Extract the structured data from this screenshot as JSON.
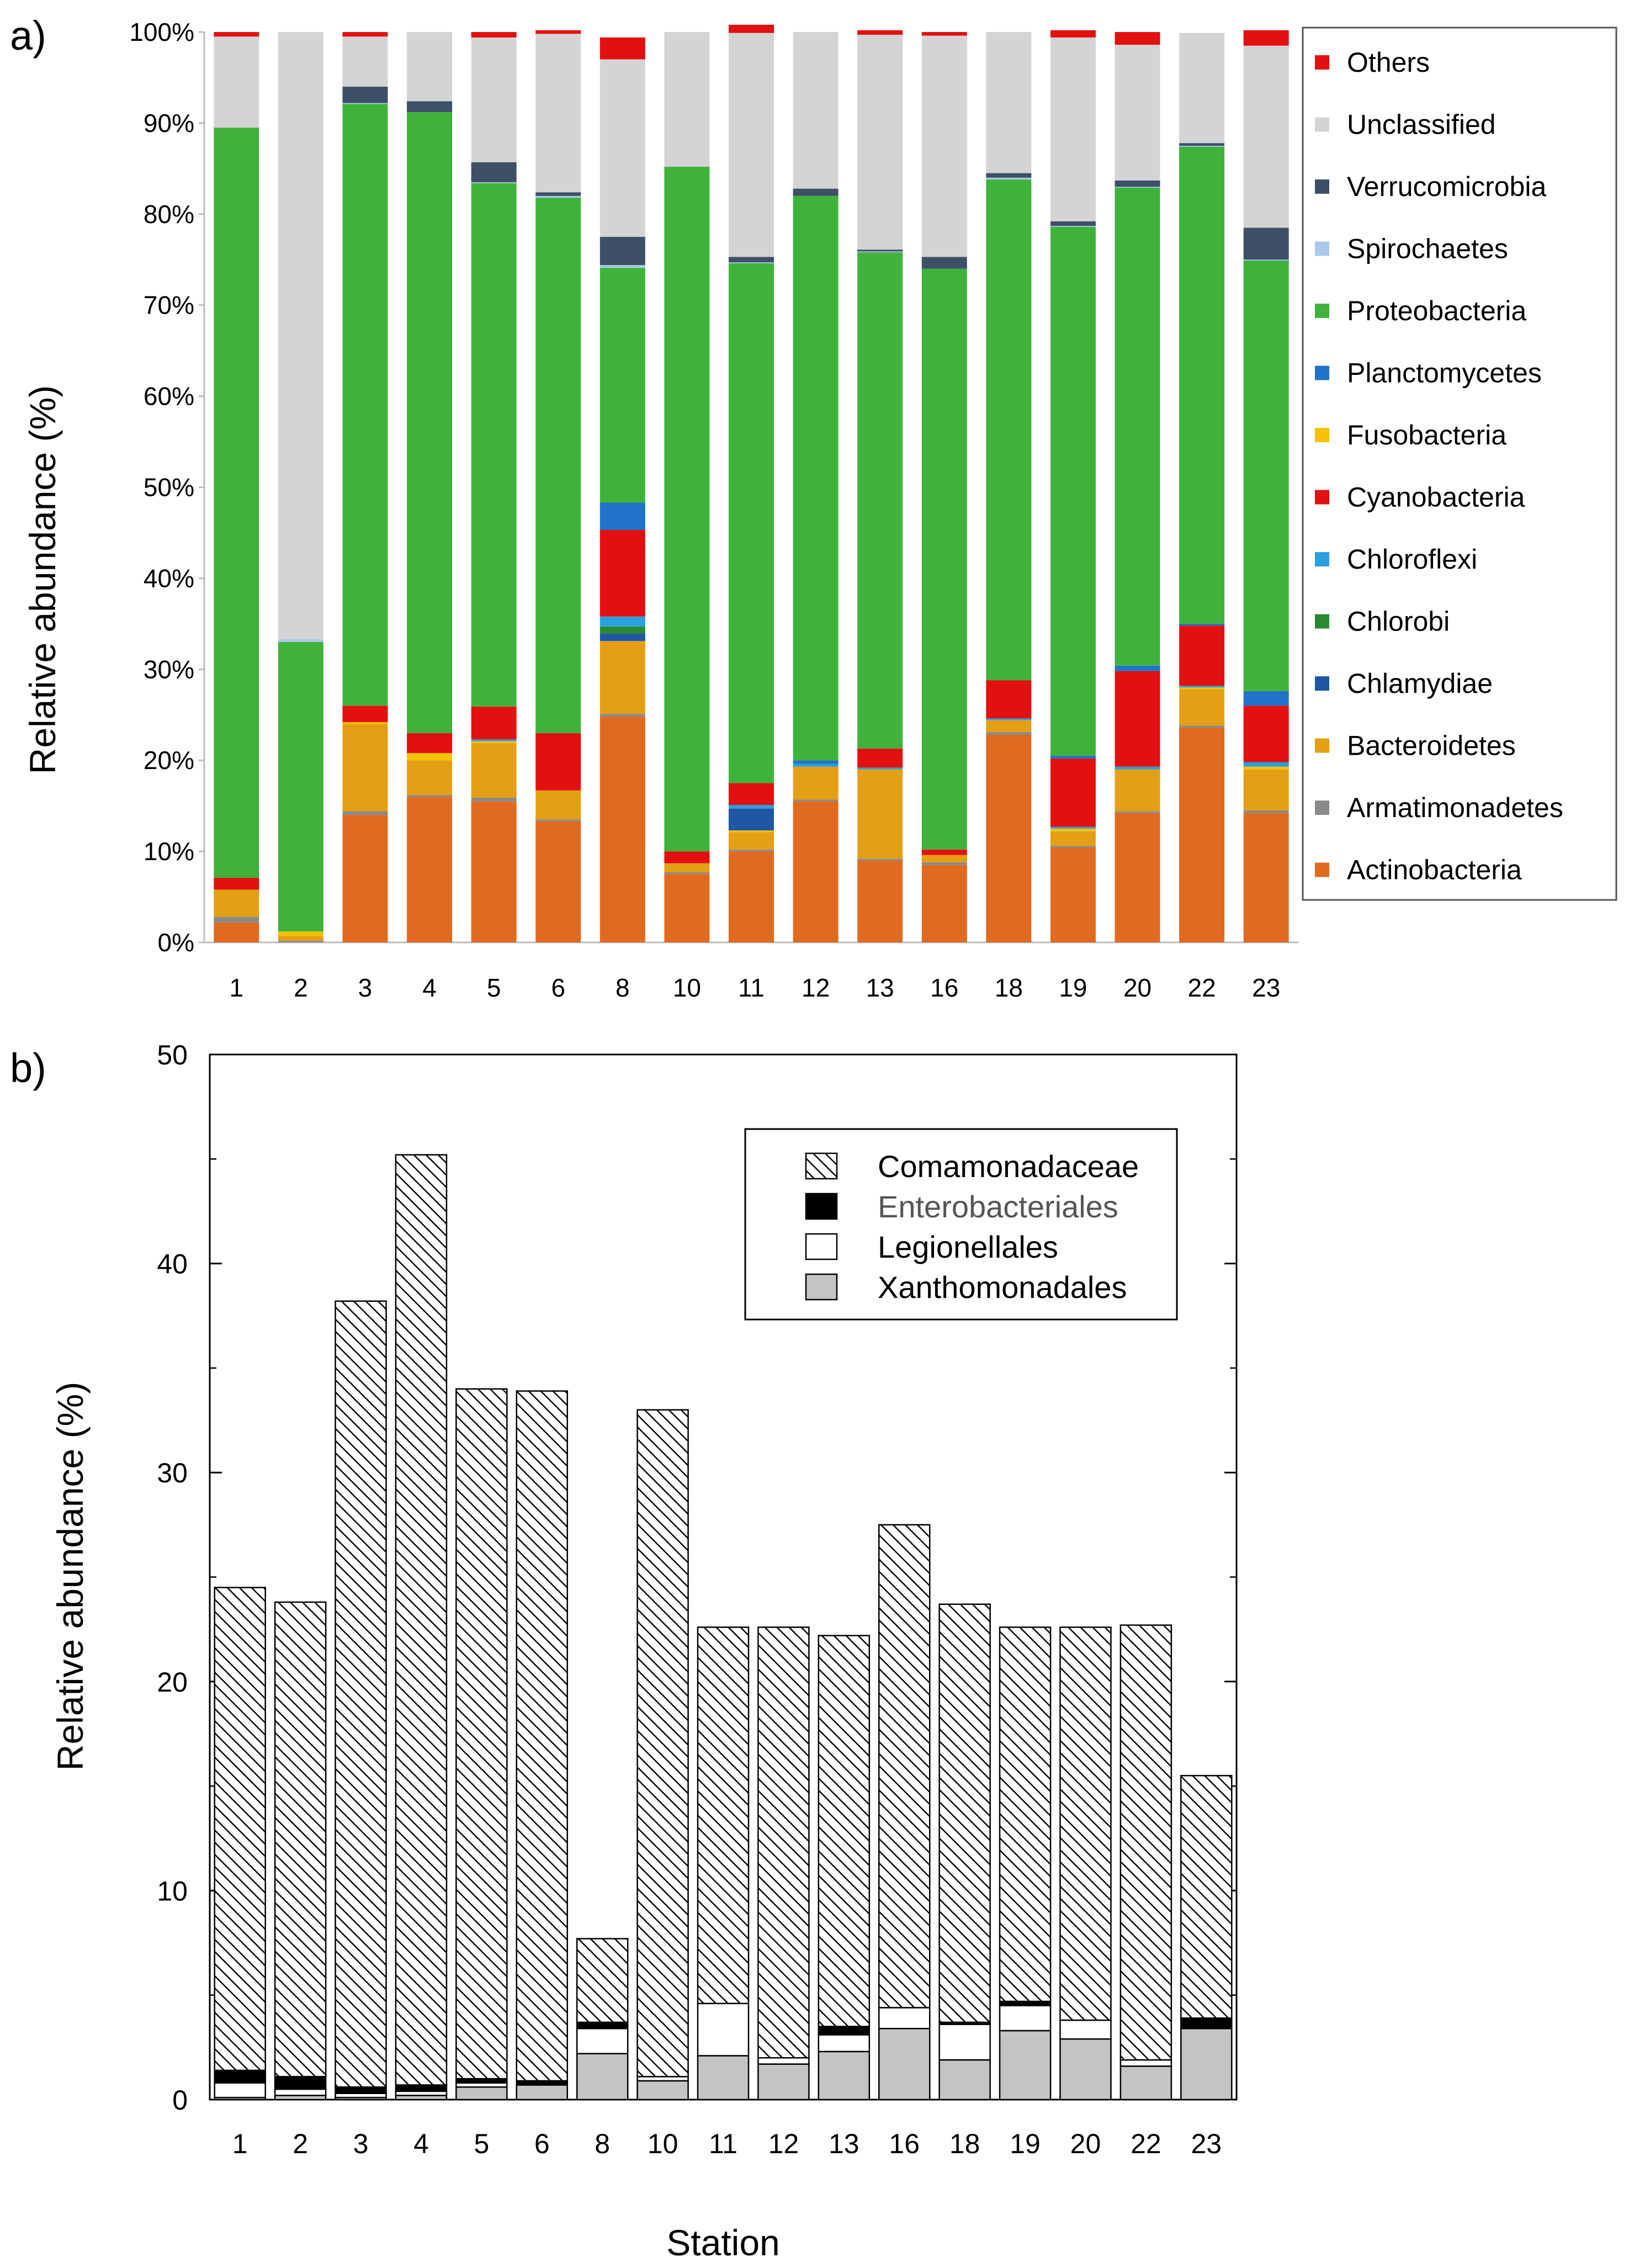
{
  "panels": {
    "a": "a)",
    "b": "b)"
  },
  "colors": {
    "Actinobacteria": "#e06a1f",
    "Armatimonadetes": "#8a8a8a",
    "Bacteroidetes": "#e59f14",
    "Chlamydiae": "#1f57a4",
    "Chlorobi": "#2a8a34",
    "Chloroflexi": "#2ba0de",
    "Cyanobacteria": "#e31010",
    "Fusobacteria": "#f7c200",
    "Planctomycetes": "#2173c9",
    "Proteobacteria": "#3fb23b",
    "Spirochaetes": "#a9c8ea",
    "Verrucomicrobia": "#3e5068",
    "Unclassified": "#d4d4d4",
    "Others": "#e31010",
    "Comamonadaceae_bg": "#ffffff",
    "Enterobacteriales": "#000000",
    "Legionellales": "#ffffff",
    "Xanthomonadales": "#c4c4c4"
  },
  "chart_data": [
    {
      "type": "bar",
      "stacked": true,
      "title": "",
      "xlabel": "",
      "ylabel": "Relative abundance (%)",
      "ylim": [
        0,
        100
      ],
      "yticks": [
        "0%",
        "10%",
        "20%",
        "30%",
        "40%",
        "50%",
        "60%",
        "70%",
        "80%",
        "90%",
        "100%"
      ],
      "legend_position": "right",
      "categories": [
        "1",
        "2",
        "3",
        "4",
        "5",
        "6",
        "8",
        "10",
        "11",
        "12",
        "13",
        "16",
        "18",
        "19",
        "20",
        "22",
        "23"
      ],
      "series": [
        {
          "name": "Actinobacteria",
          "values": [
            2.2,
            0.0,
            14.0,
            16.0,
            15.5,
            13.3,
            24.8,
            7.5,
            10.0,
            15.5,
            9.0,
            8.5,
            22.8,
            10.4,
            14.2,
            23.6,
            14.2
          ]
        },
        {
          "name": "Armatimonadetes",
          "values": [
            0.6,
            0.2,
            0.4,
            0.2,
            0.4,
            0.2,
            0.3,
            0.2,
            0.2,
            0.2,
            0.2,
            0.3,
            0.3,
            0.2,
            0.2,
            0.2,
            0.3
          ]
        },
        {
          "name": "Bacteroidetes",
          "values": [
            3.0,
            0.5,
            9.6,
            3.8,
            6.0,
            3.2,
            8.0,
            1.0,
            1.9,
            3.6,
            9.8,
            0.8,
            1.3,
            1.6,
            4.6,
            4.0,
            4.5
          ]
        },
        {
          "name": "Fusobacteria",
          "values": [
            0.0,
            0.5,
            0.2,
            0.8,
            0.2,
            0.0,
            0.0,
            0.0,
            0.2,
            0.0,
            0.0,
            0.0,
            0.0,
            0.3,
            0.0,
            0.2,
            0.3
          ]
        },
        {
          "name": "Chlamydiae",
          "values": [
            0.0,
            0.0,
            0.0,
            0.0,
            0.0,
            0.0,
            0.8,
            0.0,
            2.4,
            0.0,
            0.0,
            0.0,
            0.0,
            0.0,
            0.0,
            0.0,
            0.0
          ]
        },
        {
          "name": "Chlorobi",
          "values": [
            0.0,
            0.0,
            0.0,
            0.0,
            0.0,
            0.0,
            0.8,
            0.0,
            0.0,
            0.0,
            0.0,
            0.0,
            0.0,
            0.0,
            0.0,
            0.0,
            0.0
          ]
        },
        {
          "name": "Chloroflexi",
          "values": [
            0.0,
            0.0,
            0.0,
            0.0,
            0.2,
            0.0,
            1.1,
            0.0,
            0.4,
            0.3,
            0.2,
            0.0,
            0.2,
            0.2,
            0.3,
            0.2,
            0.5
          ]
        },
        {
          "name": "Cyanobacteria",
          "values": [
            1.3,
            0.0,
            1.8,
            2.2,
            3.6,
            6.3,
            9.5,
            1.3,
            2.4,
            0.0,
            2.1,
            0.6,
            4.2,
            7.5,
            10.5,
            6.6,
            6.2
          ]
        },
        {
          "name": "Planctomycetes",
          "values": [
            0.0,
            0.0,
            0.0,
            0.0,
            0.0,
            0.0,
            3.0,
            0.0,
            0.0,
            0.4,
            0.0,
            0.0,
            0.0,
            0.3,
            0.6,
            0.2,
            1.6
          ]
        },
        {
          "name": "Proteobacteria",
          "values": [
            82.4,
            31.8,
            66.1,
            68.2,
            57.5,
            58.8,
            25.8,
            75.2,
            57.1,
            62.0,
            54.5,
            63.8,
            55.0,
            58.1,
            52.5,
            52.4,
            47.3
          ]
        },
        {
          "name": "Spirochaetes",
          "values": [
            0.0,
            0.3,
            0.1,
            0.0,
            0.1,
            0.2,
            0.3,
            0.0,
            0.1,
            0.0,
            0.1,
            0.0,
            0.2,
            0.1,
            0.1,
            0.1,
            0.1
          ]
        },
        {
          "name": "Verrucomicrobia",
          "values": [
            0.0,
            0.0,
            1.8,
            1.2,
            2.2,
            0.4,
            3.1,
            0.0,
            0.6,
            0.8,
            0.2,
            1.3,
            0.5,
            0.5,
            0.7,
            0.3,
            3.5
          ]
        },
        {
          "name": "Unclassified",
          "values": [
            10.0,
            66.7,
            5.5,
            7.6,
            13.7,
            17.4,
            19.5,
            14.8,
            24.6,
            17.2,
            23.6,
            24.3,
            15.5,
            20.2,
            14.9,
            12.1,
            20.0
          ]
        },
        {
          "name": "Others",
          "values": [
            0.5,
            0.0,
            0.5,
            0.0,
            0.6,
            0.4,
            2.4,
            0.0,
            0.9,
            0.0,
            0.5,
            0.4,
            0.0,
            0.8,
            1.4,
            0.0,
            1.7
          ]
        }
      ],
      "legend_order": [
        "Others",
        "Unclassified",
        "Verrucomicrobia",
        "Spirochaetes",
        "Proteobacteria",
        "Planctomycetes",
        "Fusobacteria",
        "Cyanobacteria",
        "Chloroflexi",
        "Chlorobi",
        "Chlamydiae",
        "Bacteroidetes",
        "Armatimonadetes",
        "Actinobacteria"
      ]
    },
    {
      "type": "bar",
      "stacked": true,
      "title": "",
      "xlabel": "Station",
      "ylabel": "Relative abundance (%)",
      "ylim": [
        0,
        50
      ],
      "yticks": [
        "0",
        "10",
        "20",
        "30",
        "40",
        "50"
      ],
      "legend_position": "top-right",
      "categories": [
        "1",
        "2",
        "3",
        "4",
        "5",
        "6",
        "8",
        "10",
        "11",
        "12",
        "13",
        "16",
        "18",
        "19",
        "20",
        "22",
        "23"
      ],
      "series": [
        {
          "name": "Xanthomonadales",
          "values": [
            0.1,
            0.2,
            0.1,
            0.2,
            0.6,
            0.7,
            2.2,
            0.9,
            2.1,
            1.7,
            2.3,
            3.4,
            1.9,
            3.3,
            2.9,
            1.6,
            3.4
          ]
        },
        {
          "name": "Legionellales",
          "values": [
            0.7,
            0.3,
            0.2,
            0.2,
            0.2,
            0.0,
            1.2,
            0.2,
            2.5,
            0.3,
            0.8,
            1.0,
            1.7,
            1.2,
            0.9,
            0.3,
            0.0
          ]
        },
        {
          "name": "Enterobacteriales",
          "values": [
            0.6,
            0.6,
            0.3,
            0.3,
            0.2,
            0.2,
            0.3,
            0.0,
            0.0,
            0.0,
            0.4,
            0.0,
            0.1,
            0.2,
            0.0,
            0.0,
            0.5
          ]
        },
        {
          "name": "Comamonadaceae",
          "values": [
            23.1,
            22.7,
            37.6,
            44.5,
            33.0,
            33.0,
            4.0,
            31.9,
            18.0,
            20.6,
            18.7,
            23.1,
            20.0,
            17.9,
            18.8,
            20.8,
            11.6
          ]
        }
      ],
      "legend_order": [
        "Comamonadaceae",
        "Enterobacteriales",
        "Legionellales",
        "Xanthomonadales"
      ]
    }
  ]
}
